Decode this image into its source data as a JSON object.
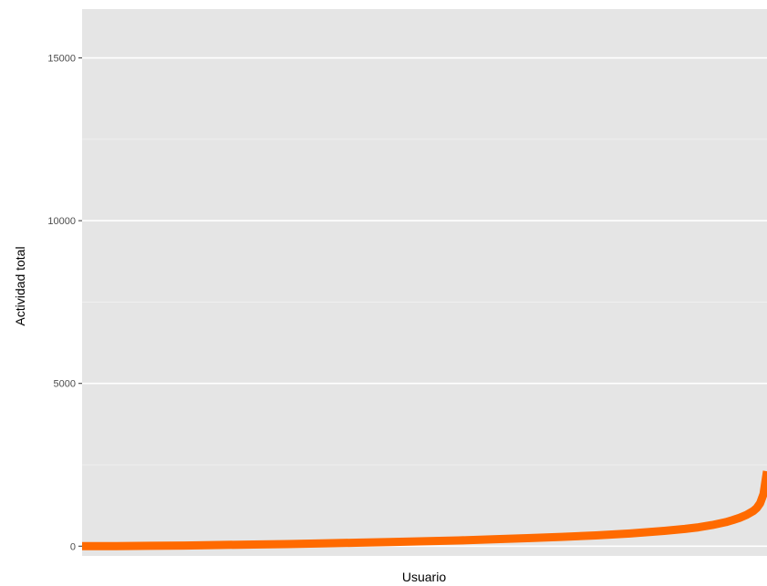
{
  "chart_data": {
    "type": "line",
    "xlabel": "Usuario",
    "ylabel": "Actividad total",
    "x_ticks_shown": false,
    "ylim": [
      -300,
      16500
    ],
    "yticks": [
      {
        "value": 0,
        "label": "0"
      },
      {
        "value": 5000,
        "label": "5000"
      },
      {
        "value": 10000,
        "label": "10000"
      },
      {
        "value": 15000,
        "label": "15000"
      }
    ],
    "y_minor_gridlines": [
      2500,
      7500,
      12500
    ],
    "grid": true,
    "background": "#e5e5e5",
    "series": [
      {
        "color": "#ff6a00",
        "x": [
          0,
          0.05,
          0.1,
          0.15,
          0.2,
          0.25,
          0.3,
          0.35,
          0.4,
          0.45,
          0.5,
          0.55,
          0.6,
          0.65,
          0.7,
          0.75,
          0.8,
          0.85,
          0.88,
          0.9,
          0.92,
          0.94,
          0.95,
          0.96,
          0.97,
          0.98,
          0.985,
          0.99,
          0.995,
          1.0
        ],
        "values": [
          0,
          0,
          10,
          20,
          35,
          50,
          65,
          85,
          105,
          125,
          150,
          175,
          210,
          245,
          285,
          330,
          390,
          470,
          530,
          580,
          650,
          740,
          800,
          870,
          960,
          1080,
          1170,
          1320,
          1600,
          2300
        ]
      }
    ]
  }
}
